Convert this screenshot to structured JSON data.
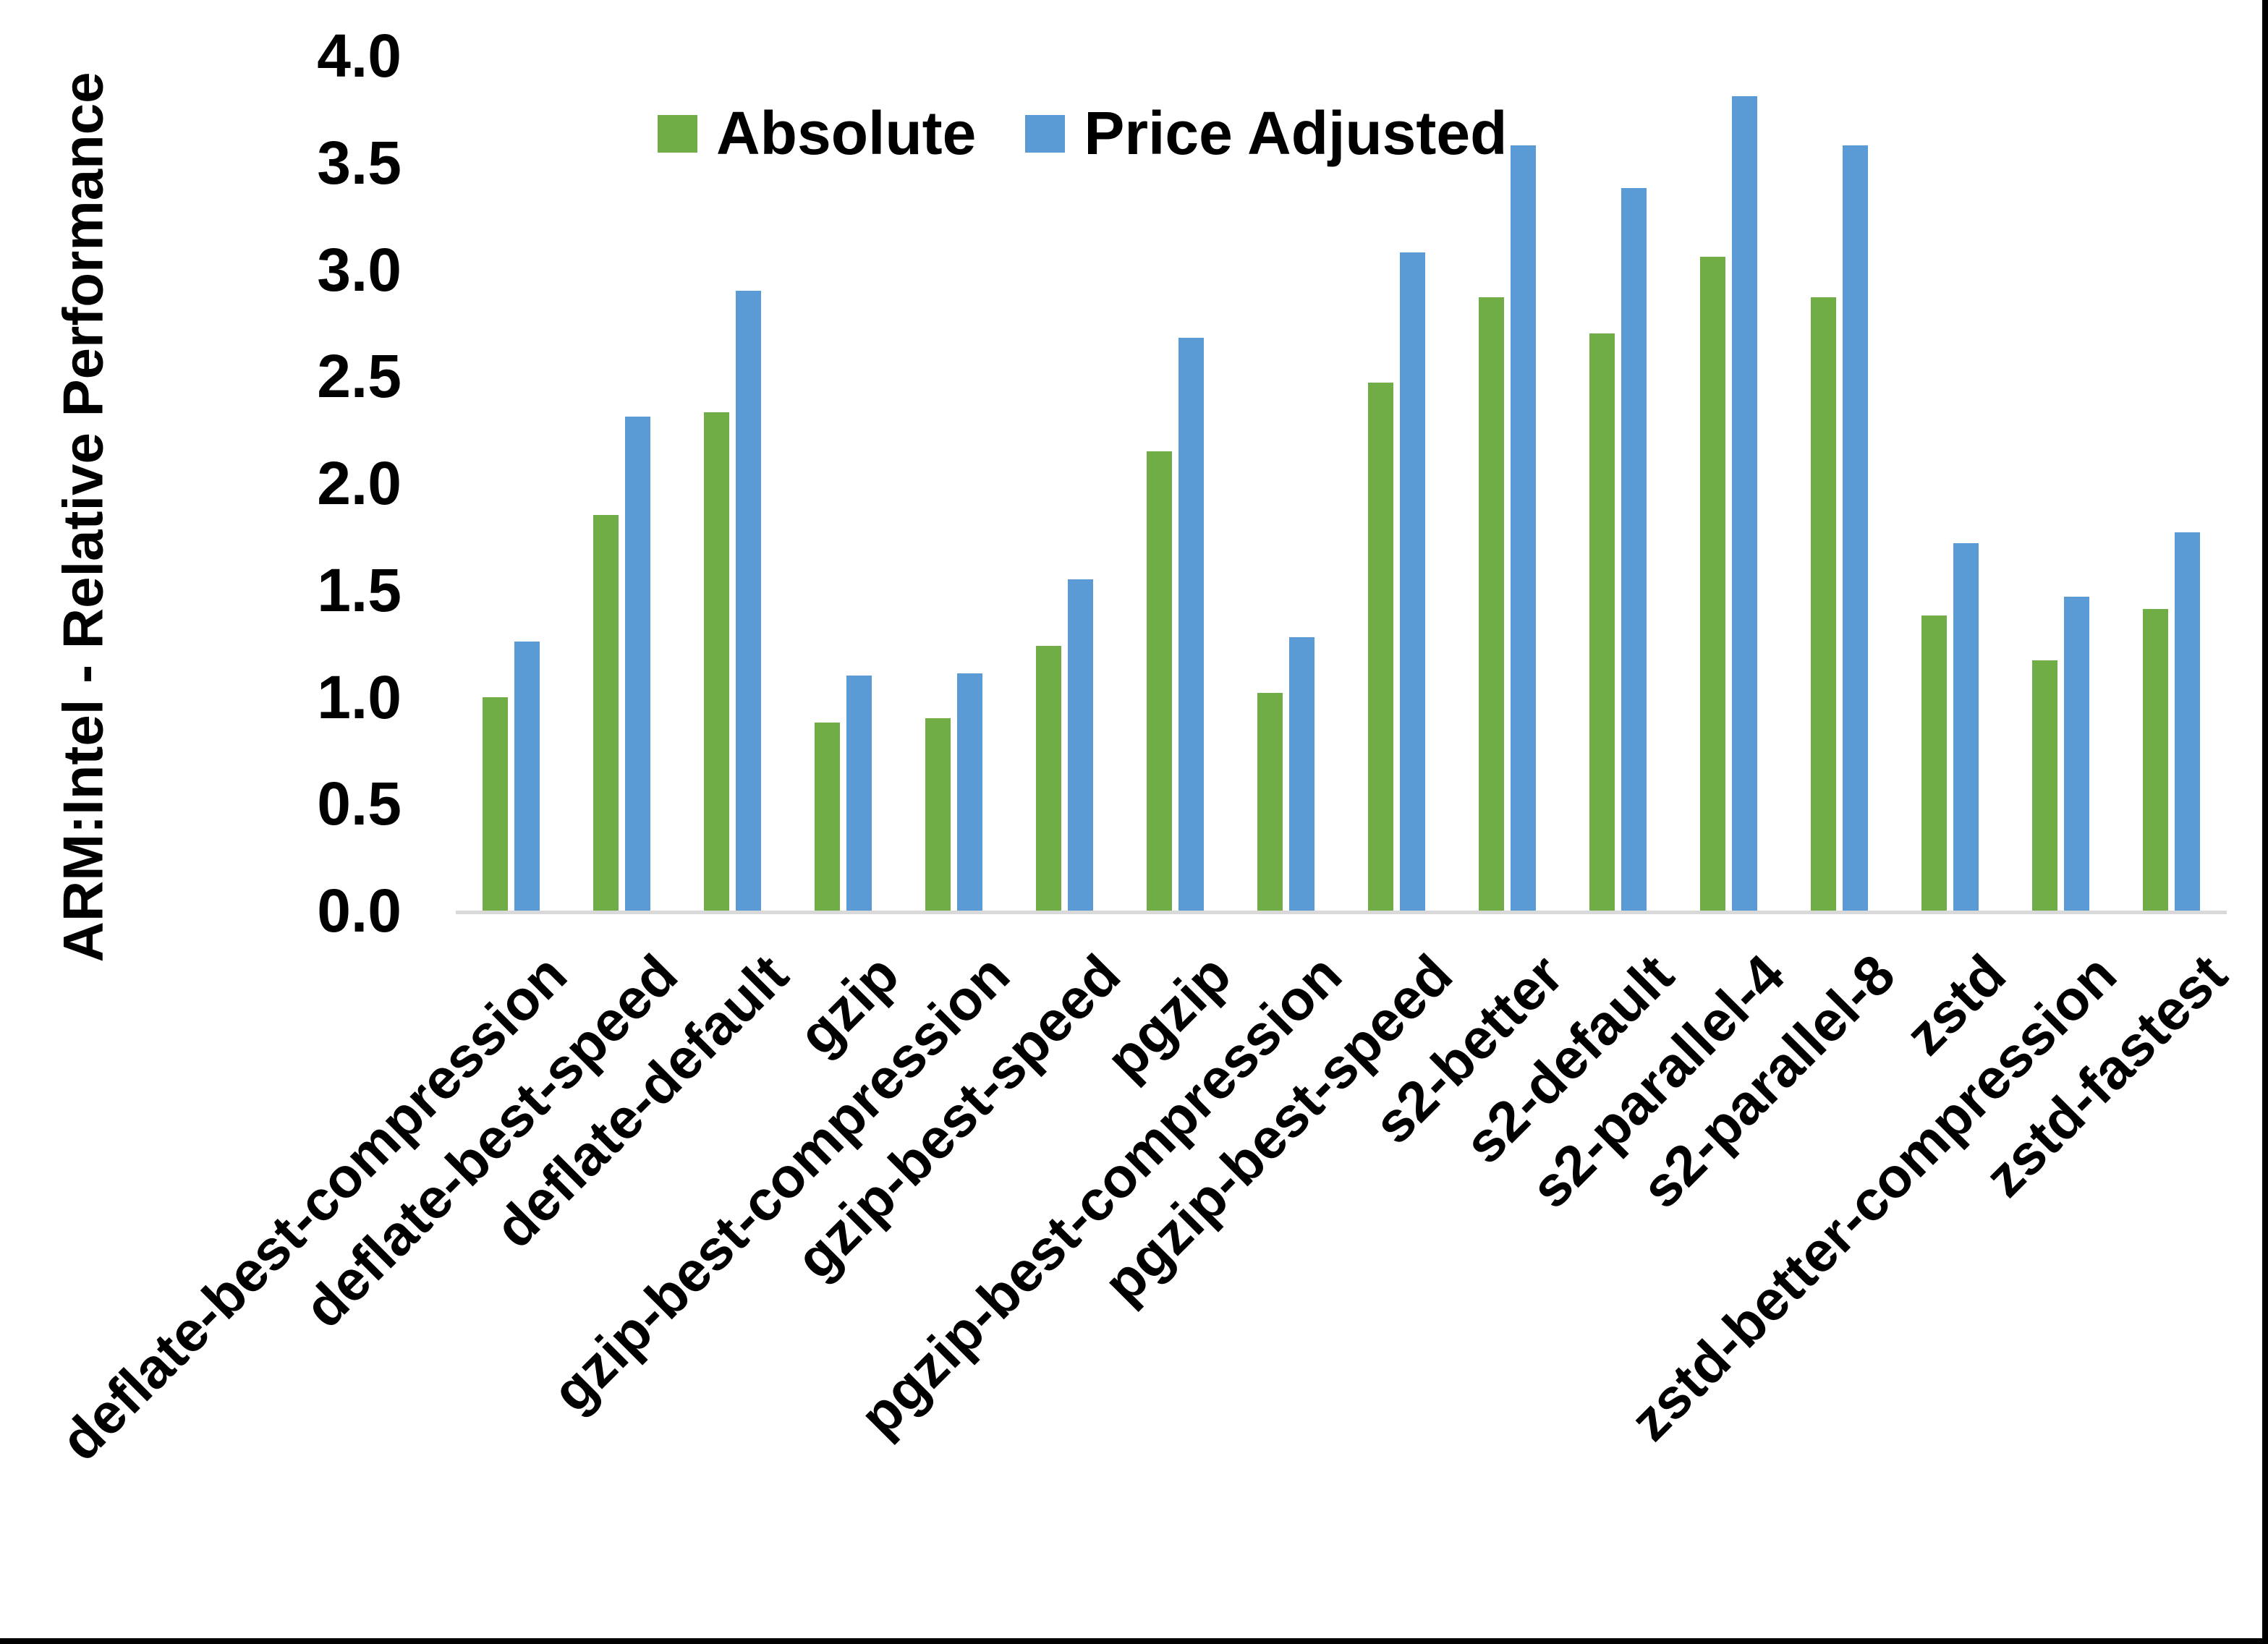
{
  "chart_data": {
    "type": "bar",
    "title": "",
    "xlabel": "",
    "ylabel": "ARM:Intel - Relative Performance",
    "ylim": [
      0.0,
      4.0
    ],
    "ytick_step": 0.5,
    "ytick_labels": [
      "0.0",
      "0.5",
      "1.0",
      "1.5",
      "2.0",
      "2.5",
      "3.0",
      "3.5",
      "4.0"
    ],
    "grid": false,
    "legend_position": "top-center-inside",
    "categories": [
      "deflate-best-compression",
      "deflate-best-speed",
      "deflate-default",
      "gzip",
      "gzip-best-compression",
      "gzip-best-speed",
      "pgzip",
      "pgzip-best-compression",
      "pgzip-best-speed",
      "s2-better",
      "s2-default",
      "s2-parallel-4",
      "s2-parallel-8",
      "zstd",
      "zstd-better-compression",
      "zstd-fastest"
    ],
    "series": [
      {
        "name": "Absolute",
        "color": "#70AD47",
        "values": [
          1.0,
          1.85,
          2.33,
          0.88,
          0.9,
          1.24,
          2.15,
          1.02,
          2.47,
          2.87,
          2.7,
          3.06,
          2.87,
          1.38,
          1.17,
          1.41
        ]
      },
      {
        "name": "Price Adjusted",
        "color": "#5B9BD5",
        "values": [
          1.26,
          2.31,
          2.9,
          1.1,
          1.11,
          1.55,
          2.68,
          1.28,
          3.08,
          3.58,
          3.38,
          3.81,
          3.58,
          1.72,
          1.47,
          1.77
        ]
      }
    ]
  },
  "colors": {
    "axis_line": "#D9D9D9",
    "text": "#000000",
    "frame_border": "#000000",
    "background": "#FFFFFF"
  }
}
